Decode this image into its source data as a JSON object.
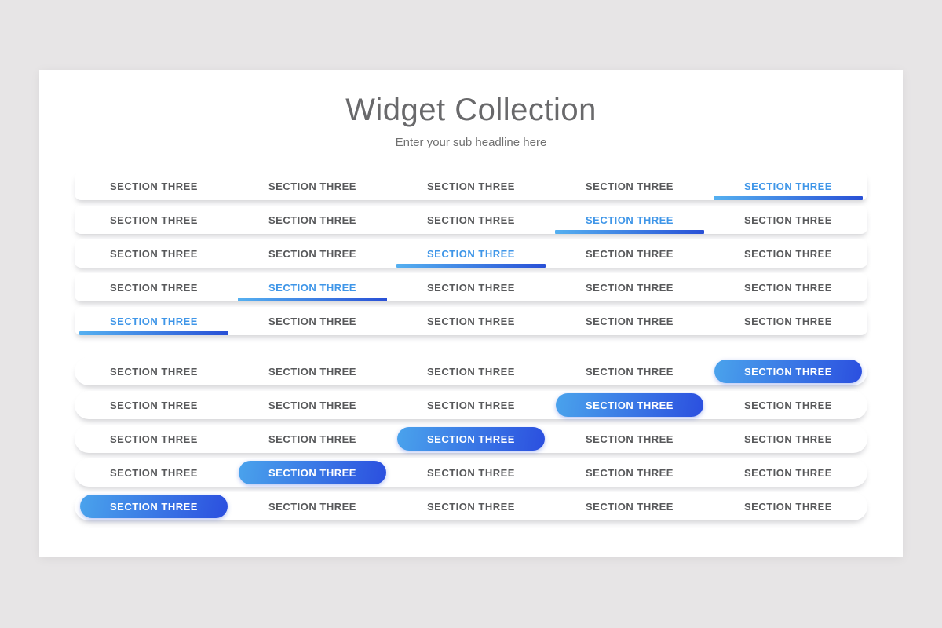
{
  "slide": {
    "title": "Widget Collection",
    "subtitle": "Enter your sub headline here"
  },
  "cell_label": "SECTION THREE",
  "columns": 5,
  "groups": [
    {
      "name": "underline-tab-bars",
      "highlight_style": "underline",
      "rows": [
        {
          "highlight": 5
        },
        {
          "highlight": 4
        },
        {
          "highlight": 3
        },
        {
          "highlight": 2
        },
        {
          "highlight": 1
        }
      ]
    },
    {
      "name": "pill-tab-bars",
      "highlight_style": "pill",
      "rows": [
        {
          "highlight": 5
        },
        {
          "highlight": 4
        },
        {
          "highlight": 3
        },
        {
          "highlight": 2
        },
        {
          "highlight": 1
        }
      ]
    }
  ],
  "colors": {
    "page_background": "#e7e5e6",
    "slide_background": "#ffffff",
    "title_text": "#69696b",
    "subtitle_text": "#707070",
    "label_gray": "#58595b",
    "accent_blue_text": "#3f96e8",
    "underline_gradient_light": "#55b0f0",
    "underline_gradient_dark": "#2950d6",
    "pill_gradient_light": "#4aa3ec",
    "pill_gradient_dark": "#2b4fdf"
  }
}
